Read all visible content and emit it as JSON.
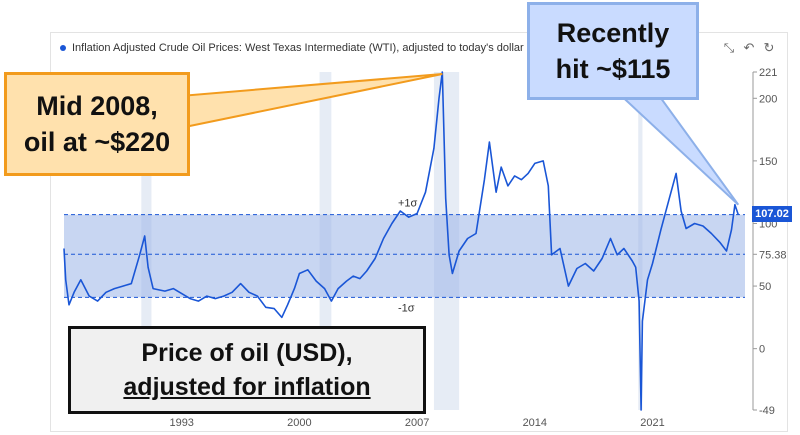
{
  "legend": {
    "label": "Inflation Adjusted Crude Oil Prices: West Texas Intermediate (WTI), adjusted to today's dollar",
    "color": "#1a56d6"
  },
  "toolbar": {
    "zoom_icon": "zoom-select-icon",
    "zoom_back_icon": "zoom-back-icon",
    "reset_icon": "refresh-icon"
  },
  "annotations": {
    "mid2008": {
      "line1": "Mid 2008,",
      "line2": "oil at ~$220"
    },
    "recent": {
      "line1": "Recently",
      "line2": "hit ~$115"
    },
    "caption": {
      "line1": "Price of oil (USD),",
      "line2": "adjusted for inflation"
    }
  },
  "chart_data": {
    "type": "line",
    "title": "",
    "xlabel": "",
    "ylabel": "",
    "xlim": [
      1986,
      2026.5
    ],
    "ylim": [
      -49,
      221
    ],
    "x_ticks": [
      "1993",
      "2000",
      "2007",
      "2014",
      "2021"
    ],
    "y_ticks": [
      "221",
      "200",
      "150",
      "100",
      "75.38",
      "50",
      "0",
      "-49"
    ],
    "last_value_label": "107.02",
    "mean": 75.38,
    "band": {
      "upper": 107.02,
      "lower": 41,
      "upper_label": "+1σ",
      "lower_label": "-1σ"
    },
    "recession_shading": [
      [
        1990.6,
        1991.2
      ],
      [
        2001.2,
        2001.9
      ],
      [
        2008.0,
        2009.5
      ],
      [
        2020.15,
        2020.4
      ]
    ],
    "series": [
      {
        "color": "#1a56d6",
        "x": [
          1986.0,
          1986.1,
          1986.3,
          1986.6,
          1987.0,
          1987.5,
          1988.0,
          1988.5,
          1989.0,
          1989.5,
          1990.0,
          1990.5,
          1990.8,
          1991.0,
          1991.3,
          1992.0,
          1992.5,
          1993.0,
          1993.5,
          1994.0,
          1994.5,
          1995.0,
          1995.5,
          1996.0,
          1996.5,
          1997.0,
          1997.5,
          1998.0,
          1998.5,
          1998.95,
          1999.3,
          1999.7,
          2000.0,
          2000.5,
          2001.0,
          2001.5,
          2001.9,
          2002.3,
          2002.8,
          2003.2,
          2003.6,
          2004.0,
          2004.5,
          2005.0,
          2005.5,
          2006.0,
          2006.5,
          2007.0,
          2007.5,
          2008.0,
          2008.3,
          2008.5,
          2008.7,
          2008.9,
          2009.1,
          2009.5,
          2010.0,
          2010.5,
          2011.0,
          2011.3,
          2011.7,
          2012.0,
          2012.4,
          2012.8,
          2013.2,
          2013.6,
          2014.0,
          2014.5,
          2014.8,
          2015.0,
          2015.5,
          2016.0,
          2016.5,
          2017.0,
          2017.5,
          2018.0,
          2018.5,
          2018.9,
          2019.3,
          2019.8,
          2020.0,
          2020.2,
          2020.32,
          2020.4,
          2020.7,
          2021.0,
          2021.5,
          2022.0,
          2022.4,
          2022.7,
          2023.0,
          2023.5,
          2024.0,
          2024.5,
          2025.0,
          2025.4,
          2025.7,
          2025.9,
          2026.1
        ],
        "values": [
          80,
          55,
          35,
          45,
          55,
          42,
          38,
          45,
          48,
          50,
          52,
          75,
          90,
          65,
          48,
          46,
          48,
          44,
          40,
          38,
          42,
          40,
          42,
          45,
          52,
          45,
          42,
          33,
          32,
          25,
          35,
          48,
          60,
          63,
          54,
          48,
          38,
          48,
          54,
          58,
          56,
          62,
          72,
          88,
          100,
          110,
          105,
          108,
          125,
          160,
          200,
          221,
          120,
          75,
          60,
          78,
          88,
          92,
          135,
          165,
          125,
          145,
          130,
          138,
          135,
          140,
          148,
          150,
          130,
          75,
          80,
          50,
          64,
          68,
          62,
          72,
          88,
          75,
          80,
          70,
          65,
          38,
          -49,
          22,
          55,
          68,
          95,
          120,
          140,
          110,
          96,
          100,
          98,
          92,
          85,
          78,
          95,
          115,
          107
        ]
      }
    ]
  }
}
